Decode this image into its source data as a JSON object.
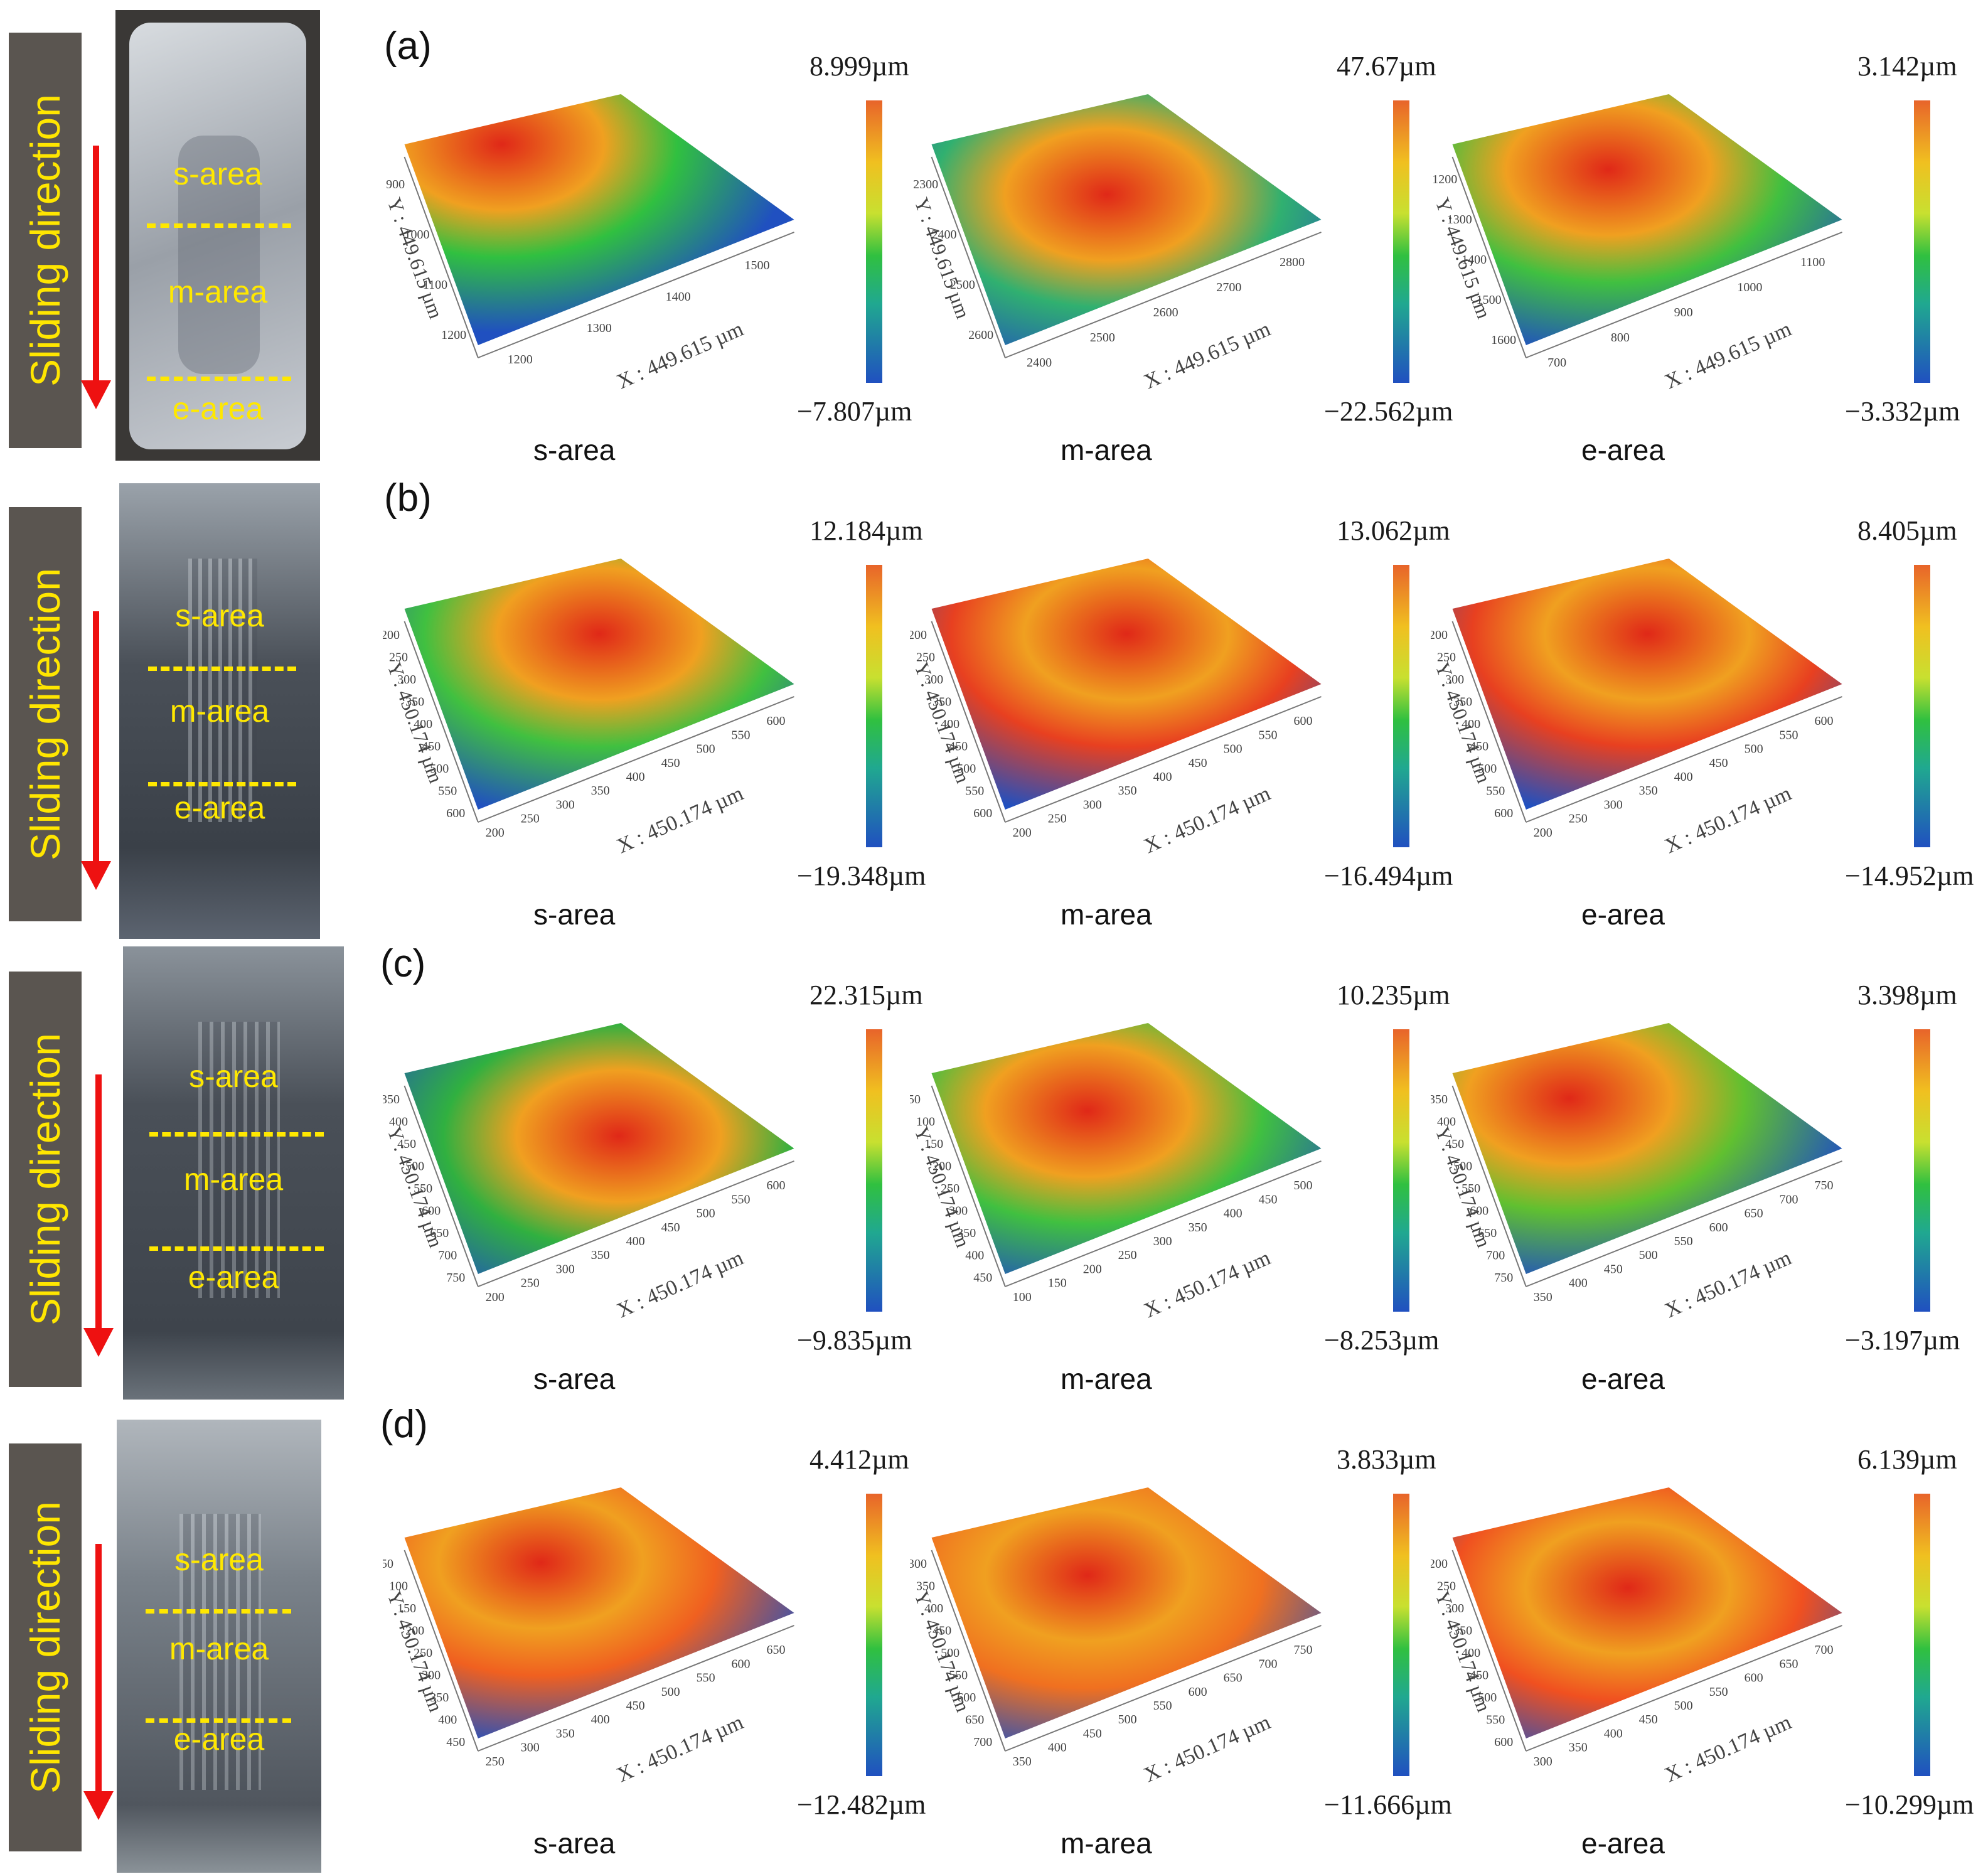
{
  "side_label": "Sliding direction",
  "photo_labels": {
    "s": "s-area",
    "m": "m-area",
    "e": "e-area"
  },
  "rows": [
    {
      "letter": "(a)",
      "panels": [
        {
          "area": "s-area",
          "max": "8.999µm",
          "min": "−7.807µm",
          "x_axis": "X : 449.615 µm",
          "y_axis": "Y : 449.615 µm",
          "x_ticks": [
            "1200",
            "1300",
            "1400",
            "1500"
          ],
          "y_ticks": [
            "900",
            "1000",
            "1100",
            "1200"
          ]
        },
        {
          "area": "m-area",
          "max": "47.67µm",
          "min": "−22.562µm",
          "x_axis": "X : 449.615 µm",
          "y_axis": "Y : 449.615 µm",
          "x_ticks": [
            "2400",
            "2500",
            "2600",
            "2700",
            "2800"
          ],
          "y_ticks": [
            "2300",
            "2400",
            "2500",
            "2600"
          ]
        },
        {
          "area": "e-area",
          "max": "3.142µm",
          "min": "−3.332µm",
          "x_axis": "X : 449.615 µm",
          "y_axis": "Y : 449.615 µm",
          "x_ticks": [
            "700",
            "800",
            "900",
            "1000",
            "1100"
          ],
          "y_ticks": [
            "1200",
            "1300",
            "1400",
            "1500",
            "1600"
          ]
        }
      ]
    },
    {
      "letter": "(b)",
      "panels": [
        {
          "area": "s-area",
          "max": "12.184µm",
          "min": "−19.348µm",
          "x_axis": "X : 450.174 µm",
          "y_axis": "Y : 450.174 µm",
          "x_ticks": [
            "200",
            "250",
            "300",
            "350",
            "400",
            "450",
            "500",
            "550",
            "600"
          ],
          "y_ticks": [
            "200",
            "250",
            "300",
            "350",
            "400",
            "450",
            "500",
            "550",
            "600"
          ]
        },
        {
          "area": "m-area",
          "max": "13.062µm",
          "min": "−16.494µm",
          "x_axis": "X : 450.174 µm",
          "y_axis": "Y : 450.174 µm",
          "x_ticks": [
            "200",
            "250",
            "300",
            "350",
            "400",
            "450",
            "500",
            "550",
            "600"
          ],
          "y_ticks": [
            "200",
            "250",
            "300",
            "350",
            "400",
            "450",
            "500",
            "550",
            "600"
          ]
        },
        {
          "area": "e-area",
          "max": "8.405µm",
          "min": "−14.952µm",
          "x_axis": "X : 450.174 µm",
          "y_axis": "Y : 450.174 µm",
          "x_ticks": [
            "200",
            "250",
            "300",
            "350",
            "400",
            "450",
            "500",
            "550",
            "600"
          ],
          "y_ticks": [
            "200",
            "250",
            "300",
            "350",
            "400",
            "450",
            "500",
            "550",
            "600"
          ]
        }
      ]
    },
    {
      "letter": "(c)",
      "panels": [
        {
          "area": "s-area",
          "max": "22.315µm",
          "min": "−9.835µm",
          "x_axis": "X : 450.174 µm",
          "y_axis": "Y : 450.174 µm",
          "x_ticks": [
            "200",
            "250",
            "300",
            "350",
            "400",
            "450",
            "500",
            "550",
            "600"
          ],
          "y_ticks": [
            "350",
            "400",
            "450",
            "500",
            "550",
            "600",
            "650",
            "700",
            "750"
          ]
        },
        {
          "area": "m-area",
          "max": "10.235µm",
          "min": "−8.253µm",
          "x_axis": "X : 450.174 µm",
          "y_axis": "Y : 450.174 µm",
          "x_ticks": [
            "100",
            "150",
            "200",
            "250",
            "300",
            "350",
            "400",
            "450",
            "500"
          ],
          "y_ticks": [
            "50",
            "100",
            "150",
            "200",
            "250",
            "300",
            "350",
            "400",
            "450"
          ]
        },
        {
          "area": "e-area",
          "max": "3.398µm",
          "min": "−3.197µm",
          "x_axis": "X : 450.174 µm",
          "y_axis": "Y : 450.174 µm",
          "x_ticks": [
            "350",
            "400",
            "450",
            "500",
            "550",
            "600",
            "650",
            "700",
            "750"
          ],
          "y_ticks": [
            "350",
            "400",
            "450",
            "500",
            "550",
            "600",
            "650",
            "700",
            "750"
          ]
        }
      ]
    },
    {
      "letter": "(d)",
      "panels": [
        {
          "area": "s-area",
          "max": "4.412µm",
          "min": "−12.482µm",
          "x_axis": "X : 450.174 µm",
          "y_axis": "Y : 450.174 µm",
          "x_ticks": [
            "250",
            "300",
            "350",
            "400",
            "450",
            "500",
            "550",
            "600",
            "650"
          ],
          "y_ticks": [
            "50",
            "100",
            "150",
            "200",
            "250",
            "300",
            "350",
            "400",
            "450"
          ]
        },
        {
          "area": "m-area",
          "max": "3.833µm",
          "min": "−11.666µm",
          "x_axis": "X : 450.174 µm",
          "y_axis": "Y : 450.174 µm",
          "x_ticks": [
            "350",
            "400",
            "450",
            "500",
            "550",
            "600",
            "650",
            "700",
            "750"
          ],
          "y_ticks": [
            "300",
            "350",
            "400",
            "450",
            "500",
            "550",
            "600",
            "650",
            "700"
          ]
        },
        {
          "area": "e-area",
          "max": "6.139µm",
          "min": "−10.299µm",
          "x_axis": "X : 450.174 µm",
          "y_axis": "Y : 450.174 µm",
          "x_ticks": [
            "300",
            "350",
            "400",
            "450",
            "500",
            "550",
            "600",
            "650",
            "700"
          ],
          "y_ticks": [
            "200",
            "250",
            "300",
            "350",
            "400",
            "450",
            "500",
            "550",
            "600"
          ]
        }
      ]
    }
  ],
  "colors": {
    "side_band": "#5a5550",
    "side_text": "#ffe600",
    "arrow": "#ee1111",
    "dash": "#ffe800",
    "high": "#e02818",
    "mid": "#30c040",
    "low": "#2050c0"
  }
}
